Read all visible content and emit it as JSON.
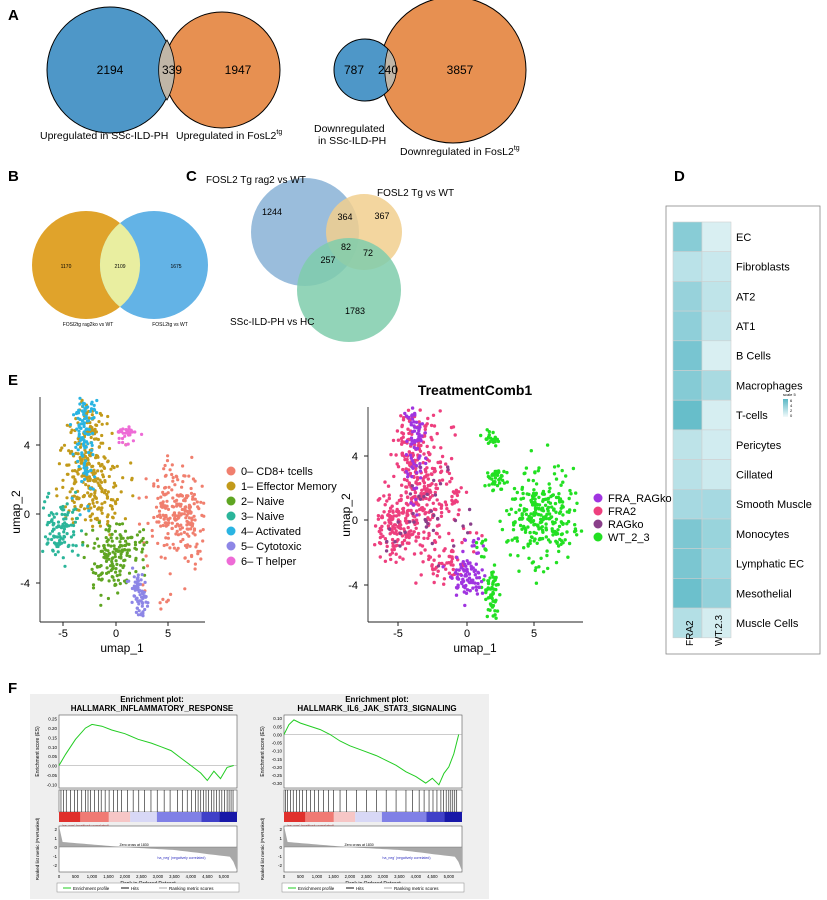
{
  "panels": {
    "A": {
      "letter": "A",
      "venn1": {
        "left_count": "2194",
        "overlap": "339",
        "right_count": "1947",
        "left_label": "Upregulated in SSc-ILD-PH",
        "right_label": "Upregulated in FosL2",
        "right_sup": "tg",
        "left_color": "#4e97c8",
        "right_color": "#e79051"
      },
      "venn2": {
        "left_count": "787",
        "overlap": "240",
        "right_count": "3857",
        "left_label_line1": "Downregulated",
        "left_label_line2": "in SSc-ILD-PH",
        "right_label": "Downregulated in FosL2",
        "right_sup": "tg",
        "left_color": "#4e97c8",
        "right_color": "#e79051"
      }
    },
    "B": {
      "letter": "B",
      "left_count": "1170",
      "overlap": "2109",
      "right_count": "1675",
      "left_label": "FOSl2tg rag2ko vs WT",
      "right_label": "FOSL2tg vs WT",
      "left_color": "#e0a32b",
      "right_color": "#63b3e6",
      "overlap_color": "#e9eea0"
    },
    "C": {
      "letter": "C",
      "top_left_label": "FOSL2 Tg rag2 vs WT",
      "top_right_label": "FOSL2 Tg vs WT",
      "bottom_label": "SSc-ILD-PH vs HC",
      "counts": {
        "a": "1244",
        "ab": "364",
        "b": "367",
        "abc": "82",
        "ac": "257",
        "bc": "72",
        "c": "1783"
      },
      "colors": {
        "a": "#8fb6d8",
        "b": "#f1cf8e",
        "c": "#7fcdac",
        "ab": "#d5d5c0",
        "ac": "#6fd5e0",
        "bc": "#bfe3a6",
        "abc": "#b8e8d8"
      }
    },
    "D": {
      "letter": "D",
      "rows": [
        "EC",
        "Fibroblasts",
        "AT2",
        "AT1",
        "B Cells",
        "Macrophages",
        "T-cells",
        "Pericytes",
        "Cillated",
        "Smooth Muscle",
        "Monocytes",
        "Lymphatic EC",
        "Mesothelial",
        "Muscle Cells"
      ],
      "columns": [
        "FRA2",
        "WT.2.3"
      ],
      "values_col1": [
        4.2,
        2.2,
        3.6,
        3.9,
        4.8,
        4.3,
        5.5,
        2.1,
        2.3,
        3.0,
        4.6,
        4.7,
        5.3,
        2.5
      ],
      "values_col2": [
        1.0,
        1.6,
        2.0,
        1.9,
        1.0,
        2.9,
        1.1,
        1.3,
        1.5,
        3.0,
        3.5,
        3.1,
        3.7,
        1.2
      ],
      "legend_title": "scale 5",
      "legend_ticks": [
        "6",
        "4",
        "2",
        "0"
      ],
      "color_low": "#f2fafb",
      "color_high": "#5ab8c6"
    },
    "E": {
      "letter": "E",
      "left": {
        "xlabel": "umap_1",
        "ylabel": "umap_2",
        "xticks": [
          "-5",
          "0",
          "5"
        ],
        "yticks": [
          "4",
          "0",
          "-4"
        ],
        "legend": [
          {
            "label": "0– CD8+ tcells",
            "color": "#f07f6e"
          },
          {
            "label": "1– Effector Memory",
            "color": "#c29a1a"
          },
          {
            "label": "2– Naive",
            "color": "#5fa522"
          },
          {
            "label": "3– Naive",
            "color": "#2bb59a"
          },
          {
            "label": "4– Activated",
            "color": "#2ab4e2"
          },
          {
            "label": "5– Cytotoxic",
            "color": "#8d86e6"
          },
          {
            "label": "6– T helper",
            "color": "#ee6bd6"
          }
        ]
      },
      "right": {
        "title": "TreatmentComb1",
        "xlabel": "umap_1",
        "ylabel": "umap_2",
        "xticks": [
          "-5",
          "0",
          "5"
        ],
        "yticks": [
          "4",
          "0",
          "-4"
        ],
        "legend": [
          {
            "label": "FRA_RAGko",
            "color": "#a034e0"
          },
          {
            "label": "FRA2",
            "color": "#ee3f7e"
          },
          {
            "label": "RAGko",
            "color": "#8a3f8a"
          },
          {
            "label": "WT_2_3",
            "color": "#22e022"
          }
        ]
      }
    },
    "F": {
      "letter": "F",
      "plots": [
        {
          "title1": "Enrichment plot:",
          "title2": "HALLMARK_INFLAMMATORY_RESPONSE",
          "ylabel_es": "Enrichment score (ES)",
          "es_ticks": [
            "0.25",
            "0.20",
            "0.15",
            "0.10",
            "0.05",
            "0.00",
            "-0.05",
            "-0.10"
          ],
          "es_range": [
            -0.12,
            0.27
          ],
          "es_curve": [
            [
              0,
              0
            ],
            [
              200,
              0.06
            ],
            [
              500,
              0.14
            ],
            [
              800,
              0.2
            ],
            [
              1000,
              0.22
            ],
            [
              1300,
              0.21
            ],
            [
              1600,
              0.19
            ],
            [
              2000,
              0.17
            ],
            [
              2400,
              0.14
            ],
            [
              2800,
              0.12
            ],
            [
              3100,
              0.1
            ],
            [
              3400,
              0.08
            ],
            [
              3700,
              0.04
            ],
            [
              4000,
              0.0
            ],
            [
              4300,
              -0.04
            ],
            [
              4500,
              -0.08
            ],
            [
              4700,
              -0.03
            ],
            [
              4900,
              -0.07
            ],
            [
              5100,
              -0.01
            ],
            [
              5300,
              0.0
            ]
          ],
          "hits": [
            60,
            140,
            220,
            350,
            470,
            560,
            690,
            800,
            880,
            960,
            1080,
            1200,
            1280,
            1400,
            1520,
            1650,
            1780,
            1900,
            2080,
            2250,
            2420,
            2600,
            2790,
            2980,
            3190,
            3370,
            3590,
            3740,
            3890,
            4020,
            4140,
            4220,
            4300,
            4380,
            4460,
            4540,
            4620,
            4700,
            4780,
            4860,
            4940,
            5020,
            5100,
            5160,
            5220,
            5280
          ],
          "label_pos": "'na_pos' (positively correlated)",
          "label_neg": "'na_neg' (negatively correlated)",
          "zero_cross": "Zero cross at 1830",
          "ylabel_rank": "Ranked list metric (PreRanked)",
          "rank_ticks": [
            "2",
            "1",
            "0",
            "-1",
            "-2"
          ],
          "xlabel": "Rank in Ordered Dataset",
          "xticks": [
            "0",
            "500",
            "1,000",
            "1,500",
            "2,000",
            "2,500",
            "3,000",
            "3,500",
            "4,000",
            "4,500",
            "5,000"
          ],
          "legend": [
            "Enrichment profile",
            "Hits",
            "Ranking metric scores"
          ]
        },
        {
          "title1": "Enrichment plot:",
          "title2": "HALLMARK_IL6_JAK_STAT3_SIGNALING",
          "ylabel_es": "Enrichment score (ES)",
          "es_ticks": [
            "0.10",
            "0.05",
            "0.00",
            "-0.05",
            "-0.10",
            "-0.15",
            "-0.20",
            "-0.25",
            "-0.30"
          ],
          "es_range": [
            -0.33,
            0.12
          ],
          "es_curve": [
            [
              0,
              0
            ],
            [
              150,
              0.06
            ],
            [
              300,
              0.09
            ],
            [
              500,
              0.07
            ],
            [
              800,
              0.05
            ],
            [
              1100,
              0.03
            ],
            [
              1400,
              0.0
            ],
            [
              1700,
              -0.04
            ],
            [
              2000,
              -0.07
            ],
            [
              2400,
              -0.1
            ],
            [
              2800,
              -0.13
            ],
            [
              3100,
              -0.16
            ],
            [
              3400,
              -0.19
            ],
            [
              3700,
              -0.23
            ],
            [
              4000,
              -0.26
            ],
            [
              4300,
              -0.3
            ],
            [
              4500,
              -0.27
            ],
            [
              4700,
              -0.31
            ],
            [
              4850,
              -0.24
            ],
            [
              5000,
              -0.2
            ],
            [
              5150,
              -0.12
            ],
            [
              5300,
              0.0
            ]
          ],
          "hits": [
            40,
            110,
            200,
            280,
            380,
            470,
            560,
            680,
            800,
            920,
            1050,
            1200,
            1350,
            1500,
            1700,
            1900,
            2200,
            2500,
            2800,
            3100,
            3400,
            3700,
            3900,
            4100,
            4250,
            4400,
            4520,
            4640,
            4760,
            4840,
            4920,
            5000,
            5060,
            5120,
            5180,
            5240
          ],
          "label_pos": "'na_pos' (positively correlated)",
          "label_neg": "'na_neg' (negatively correlated)",
          "zero_cross": "Zero cross at 1830",
          "ylabel_rank": "Ranked list metric (PreRanked)",
          "rank_ticks": [
            "2",
            "1",
            "0",
            "-1",
            "-2"
          ],
          "xlabel": "Rank in Ordered Dataset",
          "xticks": [
            "0",
            "500",
            "1,000",
            "1,500",
            "2,000",
            "2,500",
            "3,000",
            "3,500",
            "4,000",
            "4,500",
            "5,000"
          ],
          "legend": [
            "Enrichment profile",
            "Hits",
            "Ranking metric scores"
          ]
        }
      ]
    }
  }
}
